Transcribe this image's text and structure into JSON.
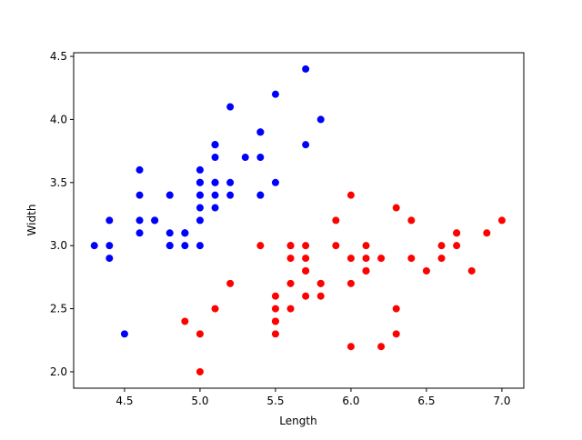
{
  "chart_data": {
    "type": "scatter",
    "x_label": "Length",
    "y_label": "Width",
    "xlim": [
      4.163,
      7.145
    ],
    "ylim": [
      1.87,
      4.529
    ],
    "xticks": [
      4.5,
      {
        "value": 5,
        "label": "5.0"
      },
      5.5,
      {
        "value": 6,
        "label": "6.0"
      },
      6.5,
      {
        "value": 7,
        "label": "7.0"
      }
    ],
    "yticks": [
      {
        "value": 2,
        "label": "2.0"
      },
      2.5,
      {
        "value": 3,
        "label": "3.0"
      },
      3.5,
      {
        "value": 4,
        "label": "4.0"
      },
      4.5
    ],
    "series": [
      {
        "color": "#0000ff",
        "x": [
          5.1,
          4.9,
          4.7,
          4.6,
          5.0,
          5.4,
          4.6,
          5.0,
          4.4,
          4.9,
          5.4,
          4.8,
          4.8,
          4.3,
          5.8,
          5.7,
          5.4,
          5.1,
          5.7,
          5.1,
          5.4,
          5.1,
          4.6,
          5.1,
          4.8,
          5.0,
          5.0,
          5.2,
          5.2,
          4.7,
          4.8,
          5.4,
          5.2,
          5.5,
          4.9,
          5.0,
          5.5,
          4.9,
          4.4,
          5.1,
          5.0,
          4.5,
          4.4,
          5.0,
          5.1,
          4.8,
          5.1,
          4.6,
          5.3,
          5.0
        ],
        "values": [
          3.5,
          3.0,
          3.2,
          3.1,
          3.6,
          3.9,
          3.4,
          3.4,
          2.9,
          3.1,
          3.7,
          3.4,
          3.0,
          3.0,
          4.0,
          4.4,
          3.9,
          3.5,
          3.8,
          3.8,
          3.4,
          3.7,
          3.6,
          3.3,
          3.4,
          3.0,
          3.4,
          3.5,
          3.4,
          3.2,
          3.1,
          3.4,
          4.1,
          4.2,
          3.1,
          3.2,
          3.5,
          3.1,
          3.0,
          3.4,
          3.5,
          2.3,
          3.2,
          3.5,
          3.8,
          3.0,
          3.8,
          3.2,
          3.7,
          3.3
        ]
      },
      {
        "color": "#ff0000",
        "x": [
          7.0,
          6.4,
          6.9,
          5.5,
          6.5,
          5.7,
          6.3,
          4.9,
          6.6,
          5.2,
          5.0,
          5.9,
          6.0,
          6.1,
          5.6,
          6.7,
          5.6,
          5.8,
          6.2,
          5.6,
          5.9,
          6.1,
          6.3,
          6.1,
          6.4,
          6.6,
          6.8,
          6.7,
          6.0,
          5.7,
          5.5,
          5.5,
          5.8,
          6.0,
          5.4,
          6.0,
          6.7,
          6.3,
          5.6,
          5.5,
          5.5,
          6.1,
          5.8,
          5.0,
          5.6,
          5.7,
          5.7,
          6.2,
          5.1,
          5.7
        ],
        "values": [
          3.2,
          3.2,
          3.1,
          2.3,
          2.8,
          2.8,
          3.3,
          2.4,
          2.9,
          2.7,
          2.0,
          3.0,
          2.2,
          2.9,
          2.9,
          3.1,
          3.0,
          2.7,
          2.2,
          2.5,
          3.2,
          2.8,
          2.5,
          2.8,
          2.9,
          3.0,
          2.8,
          3.0,
          2.9,
          2.6,
          2.4,
          2.4,
          2.7,
          2.7,
          3.0,
          3.4,
          3.1,
          2.3,
          3.0,
          2.5,
          2.6,
          3.0,
          2.6,
          2.3,
          2.7,
          3.0,
          2.9,
          2.9,
          2.5,
          2.8
        ]
      }
    ]
  }
}
